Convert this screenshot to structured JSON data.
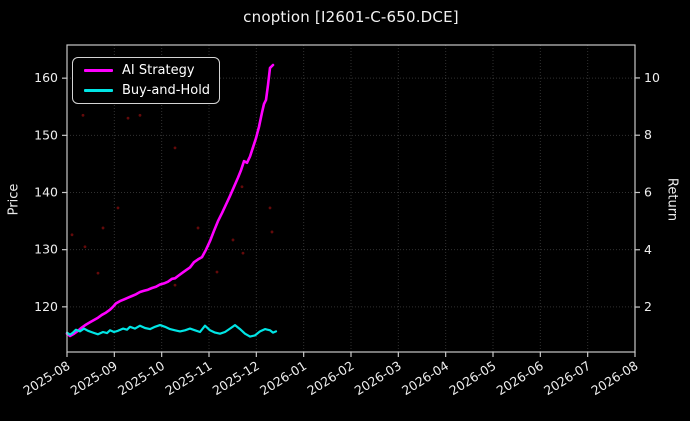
{
  "title": "cnoption [I2601-C-650.DCE]",
  "axes": {
    "left_label": "Price",
    "right_label": "Return",
    "x_tick_labels": [
      "2025-08",
      "2025-09",
      "2025-10",
      "2025-11",
      "2025-12",
      "2026-01",
      "2026-02",
      "2026-03",
      "2026-04",
      "2026-05",
      "2026-06",
      "2026-07",
      "2026-08"
    ],
    "left_tick_labels": [
      "120",
      "130",
      "140",
      "150",
      "160"
    ],
    "right_tick_labels": [
      "2",
      "4",
      "6",
      "8",
      "10"
    ]
  },
  "colors": {
    "background": "#000000",
    "spine": "#c8c8c8",
    "grid": "#9a9a9a",
    "text": "#eeeeee",
    "ai_strategy": "#ff00ff",
    "buy_and_hold": "#00e5e5",
    "signal_dot": "#c81414"
  },
  "chart_data": {
    "type": "line",
    "title": "cnoption [I2601-C-650.DCE]",
    "xlabel": "",
    "ylabel_left": "Price",
    "ylabel_right": "Return",
    "x_axis": {
      "unit": "months since 2025-08",
      "range": [
        0,
        12
      ],
      "ticks": [
        0,
        1,
        2,
        3,
        4,
        5,
        6,
        7,
        8,
        9,
        10,
        11,
        12
      ],
      "tick_labels": [
        "2025-08",
        "2025-09",
        "2025-10",
        "2025-11",
        "2025-12",
        "2026-01",
        "2026-02",
        "2026-03",
        "2026-04",
        "2026-05",
        "2026-06",
        "2026-07",
        "2026-08"
      ]
    },
    "y_axis_left": {
      "label": "Price",
      "range": [
        112.1,
        165.8
      ],
      "ticks": [
        120,
        130,
        140,
        150,
        160
      ]
    },
    "y_axis_right": {
      "label": "Return",
      "range": [
        0.43,
        11.15
      ],
      "ticks": [
        2,
        4,
        6,
        8,
        10
      ]
    },
    "grid": true,
    "legend_position": "upper left",
    "series": [
      {
        "name": "AI Strategy",
        "color": "#ff00ff",
        "axis": "left",
        "width": 2.6,
        "x": [
          0.0,
          0.063,
          0.148,
          0.232,
          0.317,
          0.401,
          0.486,
          0.57,
          0.655,
          0.739,
          0.824,
          0.908,
          0.972,
          1.035,
          1.12,
          1.204,
          1.289,
          1.373,
          1.458,
          1.542,
          1.627,
          1.711,
          1.796,
          1.88,
          1.965,
          2.049,
          2.134,
          2.218,
          2.282,
          2.345,
          2.43,
          2.514,
          2.599,
          2.683,
          2.768,
          2.852,
          2.937,
          3.021,
          3.106,
          3.19,
          3.275,
          3.359,
          3.444,
          3.528,
          3.613,
          3.676,
          3.739,
          3.803,
          3.866,
          3.93,
          3.993,
          4.056,
          4.12,
          4.162,
          4.204,
          4.246,
          4.289,
          4.352
        ],
        "y": [
          115.3,
          114.9,
          115.3,
          115.8,
          116.4,
          116.9,
          117.3,
          117.7,
          118.1,
          118.6,
          119.0,
          119.5,
          120.0,
          120.6,
          121.0,
          121.3,
          121.6,
          121.9,
          122.2,
          122.6,
          122.8,
          123.0,
          123.3,
          123.5,
          123.9,
          124.1,
          124.4,
          124.9,
          125.0,
          125.4,
          125.9,
          126.4,
          126.9,
          127.8,
          128.3,
          128.7,
          130.0,
          131.5,
          133.3,
          135.0,
          136.4,
          137.9,
          139.4,
          141.0,
          142.6,
          143.9,
          145.5,
          145.2,
          146.3,
          147.9,
          149.5,
          151.5,
          154.0,
          155.5,
          156.2,
          158.8,
          161.8,
          162.3
        ]
      },
      {
        "name": "Buy-and-Hold",
        "color": "#00e5e5",
        "axis": "left",
        "width": 2.2,
        "x": [
          0.0,
          0.063,
          0.127,
          0.19,
          0.275,
          0.359,
          0.444,
          0.549,
          0.655,
          0.761,
          0.845,
          0.908,
          0.993,
          1.077,
          1.183,
          1.268,
          1.331,
          1.437,
          1.542,
          1.648,
          1.754,
          1.859,
          1.965,
          2.07,
          2.176,
          2.282,
          2.387,
          2.493,
          2.599,
          2.704,
          2.81,
          2.915,
          3.021,
          3.127,
          3.232,
          3.338,
          3.444,
          3.549,
          3.655,
          3.761,
          3.866,
          3.972,
          4.077,
          4.183,
          4.289,
          4.352,
          4.415
        ],
        "y": [
          115.5,
          115.1,
          115.5,
          116.0,
          115.7,
          116.2,
          115.8,
          115.5,
          115.2,
          115.6,
          115.4,
          115.9,
          115.6,
          115.8,
          116.2,
          116.0,
          116.5,
          116.2,
          116.7,
          116.3,
          116.1,
          116.5,
          116.8,
          116.5,
          116.1,
          115.9,
          115.7,
          115.9,
          116.2,
          115.9,
          115.6,
          116.7,
          115.9,
          115.5,
          115.3,
          115.6,
          116.2,
          116.8,
          116.1,
          115.3,
          114.8,
          115.0,
          115.7,
          116.1,
          115.9,
          115.5,
          115.7
        ]
      }
    ],
    "scatter": {
      "name": "signal-dots",
      "color": "#c81414",
      "opacity": 0.5,
      "radius": 1.4,
      "points": [
        [
          0.338,
          153.5
        ],
        [
          1.289,
          153.0
        ],
        [
          1.542,
          153.5
        ],
        [
          2.282,
          147.8
        ],
        [
          3.93,
          147.8
        ],
        [
          3.697,
          141.0
        ],
        [
          1.077,
          137.3
        ],
        [
          4.289,
          137.3
        ],
        [
          0.761,
          133.8
        ],
        [
          0.106,
          132.6
        ],
        [
          2.768,
          133.8
        ],
        [
          4.331,
          133.1
        ],
        [
          0.38,
          130.5
        ],
        [
          3.507,
          131.7
        ],
        [
          0.655,
          125.9
        ],
        [
          3.169,
          126.1
        ],
        [
          2.282,
          123.8
        ],
        [
          3.718,
          129.4
        ]
      ]
    }
  }
}
